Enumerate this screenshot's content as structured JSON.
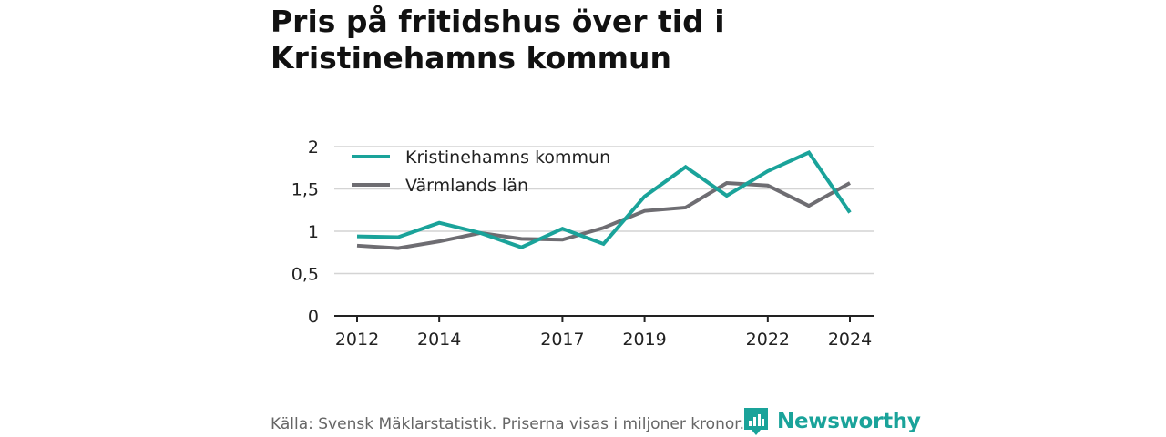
{
  "title": "Pris på fritidshus över tid i Kristinehamns kommun",
  "source": "Källa: Svensk Mäklarstatistik. Priserna visas i miljoner kronor.",
  "brand": {
    "name": "Newsworthy",
    "icon": "newsworthy-logo-icon",
    "color": "#1aa39a"
  },
  "chart_data": {
    "type": "line",
    "x": [
      2012,
      2013,
      2014,
      2015,
      2016,
      2017,
      2018,
      2019,
      2020,
      2021,
      2022,
      2023,
      2024
    ],
    "x_tick_labels": [
      "2012",
      "2014",
      "2017",
      "2019",
      "2022",
      "2024"
    ],
    "y_tick_labels": [
      "0",
      "0,5",
      "1",
      "1,5",
      "2"
    ],
    "ylim": [
      0,
      2
    ],
    "grid": true,
    "legend_position": "top-left",
    "series": [
      {
        "name": "Kristinehamns kommun",
        "color": "#1aa39a",
        "values": [
          0.94,
          0.93,
          1.1,
          0.98,
          0.81,
          1.03,
          0.85,
          1.41,
          1.76,
          1.42,
          1.71,
          1.93,
          1.22
        ]
      },
      {
        "name": "Värmlands län",
        "color": "#6e6d72",
        "values": [
          0.83,
          0.8,
          0.88,
          0.98,
          0.91,
          0.9,
          1.04,
          1.24,
          1.28,
          1.57,
          1.54,
          1.3,
          1.57
        ]
      }
    ]
  }
}
